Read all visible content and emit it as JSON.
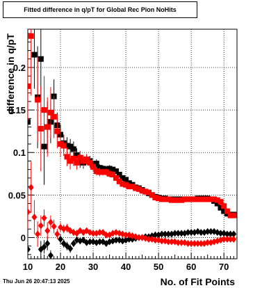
{
  "window": {
    "title": "Fitted difference in q/pT for Global Rec Pion NoHits",
    "timestamp": "Thu Jun 26 20:47:13 2025"
  },
  "chart_data": {
    "type": "scatter",
    "title": "Fitted difference in q/pT for Global Rec Pion NoHits",
    "xlabel": "No. of Fit Points",
    "ylabel": "difference in q/pT",
    "xlim": [
      10,
      74
    ],
    "ylim": [
      -0.025,
      0.245
    ],
    "x_ticks": [
      10,
      20,
      30,
      40,
      50,
      60,
      70
    ],
    "y_ticks": [
      0,
      0.05,
      0.1,
      0.15,
      0.2
    ],
    "y_tick_labels": [
      "0",
      "0.05",
      "0.1",
      "0.15",
      "0.2"
    ],
    "grid": true,
    "colors": {
      "black": "#000000",
      "red": "#ff0000"
    },
    "series": [
      {
        "color": "#000000",
        "marker": "square",
        "x": [
          10,
          11,
          12,
          13,
          14,
          15,
          16,
          17,
          18,
          19,
          20,
          21,
          22,
          23,
          24,
          25,
          26,
          27,
          28,
          29,
          30,
          31,
          32,
          33,
          34,
          35,
          36,
          37,
          38,
          39,
          40,
          41,
          42,
          43,
          44,
          45,
          46,
          47,
          48,
          49,
          50,
          51,
          52,
          53,
          54,
          55,
          56,
          57,
          58,
          59,
          60,
          61,
          62,
          63,
          64,
          65,
          66,
          67,
          68,
          69,
          70,
          71,
          72,
          73
        ],
        "values": [
          0.136,
          null,
          0.215,
          0.165,
          0.21,
          0.107,
          0.13,
          0.136,
          0.166,
          0.132,
          0.121,
          0.111,
          0.108,
          0.107,
          0.104,
          0.097,
          0.089,
          0.088,
          0.092,
          0.09,
          0.085,
          0.087,
          0.082,
          0.081,
          0.08,
          0.081,
          0.08,
          0.078,
          0.074,
          0.07,
          0.068,
          0.064,
          0.062,
          0.059,
          0.058,
          0.056,
          0.054,
          0.052,
          0.05,
          0.048,
          0.047,
          0.046,
          0.046,
          0.045,
          0.045,
          0.045,
          0.045,
          0.045,
          0.045,
          0.045,
          0.045,
          0.045,
          0.046,
          0.046,
          0.046,
          0.046,
          0.045,
          0.043,
          0.04,
          0.035,
          0.031,
          0.028,
          0.027,
          0.027
        ],
        "err": [
          0.02,
          null,
          0.04,
          0.06,
          0.05,
          0.045,
          0.03,
          0.025,
          0.02,
          0.015,
          0.012,
          0.01,
          0.01,
          0.009,
          0.009,
          0.008,
          0.007,
          0.007,
          0.006,
          0.006,
          0.005,
          0.005,
          0.004,
          0.004,
          0.004,
          0.004,
          0.003,
          0.003,
          0.003,
          0.003,
          0.003,
          0.002,
          0.002,
          0.002,
          0.002,
          0.002,
          0.002,
          0.002,
          0.002,
          0.002,
          0.002,
          0.002,
          0.002,
          0.002,
          0.002,
          0.002,
          0.002,
          0.002,
          0.002,
          0.002,
          0.002,
          0.002,
          0.002,
          0.002,
          0.002,
          0.002,
          0.002,
          0.002,
          0.002,
          0.002,
          0.002,
          0.002,
          0.002,
          0.002
        ]
      },
      {
        "color": "#ff0000",
        "marker": "square",
        "x": [
          10,
          11,
          12,
          13,
          14,
          15,
          16,
          17,
          18,
          19,
          20,
          21,
          22,
          23,
          24,
          25,
          26,
          27,
          28,
          29,
          30,
          31,
          32,
          33,
          34,
          35,
          36,
          37,
          38,
          39,
          40,
          41,
          42,
          43,
          44,
          45,
          46,
          47,
          48,
          49,
          50,
          51,
          52,
          53,
          54,
          55,
          56,
          57,
          58,
          59,
          60,
          61,
          62,
          63,
          64,
          65,
          66,
          67,
          68,
          69,
          70,
          71,
          72,
          73
        ],
        "values": [
          0.178,
          0.237,
          null,
          0.162,
          0.128,
          0.15,
          0.13,
          0.147,
          0.142,
          0.125,
          0.11,
          0.108,
          0.095,
          0.09,
          0.093,
          0.088,
          0.094,
          0.09,
          0.092,
          0.088,
          0.083,
          0.078,
          0.077,
          0.077,
          0.077,
          0.075,
          0.074,
          0.07,
          0.066,
          0.063,
          0.062,
          0.06,
          0.06,
          0.058,
          0.057,
          0.055,
          0.054,
          0.053,
          0.05,
          0.047,
          0.046,
          0.045,
          0.045,
          0.045,
          0.044,
          0.044,
          0.044,
          0.044,
          0.045,
          0.045,
          0.045,
          0.045,
          0.045,
          0.045,
          0.045,
          0.045,
          0.045,
          0.045,
          0.044,
          0.042,
          0.037,
          0.031,
          0.026,
          0.026
        ],
        "err": [
          0.04,
          0.07,
          null,
          0.05,
          0.05,
          0.04,
          0.035,
          0.03,
          0.025,
          0.02,
          0.015,
          0.012,
          0.011,
          0.01,
          0.009,
          0.008,
          0.008,
          0.007,
          0.006,
          0.006,
          0.005,
          0.005,
          0.005,
          0.004,
          0.004,
          0.004,
          0.003,
          0.003,
          0.003,
          0.003,
          0.003,
          0.003,
          0.002,
          0.002,
          0.002,
          0.002,
          0.002,
          0.002,
          0.002,
          0.002,
          0.002,
          0.002,
          0.002,
          0.002,
          0.002,
          0.002,
          0.002,
          0.002,
          0.002,
          0.002,
          0.002,
          0.002,
          0.002,
          0.002,
          0.002,
          0.002,
          0.002,
          0.002,
          0.002,
          0.002,
          0.002,
          0.002,
          0.002,
          0.002
        ]
      },
      {
        "color": "#000000",
        "marker": "diamond",
        "x": [
          10,
          11,
          12,
          13,
          14,
          15,
          16,
          17,
          18,
          19,
          20,
          21,
          22,
          23,
          24,
          25,
          26,
          27,
          28,
          29,
          30,
          31,
          32,
          33,
          34,
          35,
          36,
          37,
          38,
          39,
          40,
          41,
          42,
          43,
          44,
          45,
          46,
          47,
          48,
          49,
          50,
          51,
          52,
          53,
          54,
          55,
          56,
          57,
          58,
          59,
          60,
          61,
          62,
          63,
          64,
          65,
          66,
          67,
          68,
          69,
          70,
          71,
          72,
          73
        ],
        "values": [
          -0.014,
          null,
          null,
          null,
          -0.014,
          -0.011,
          -0.007,
          -0.021,
          null,
          null,
          -0.002,
          -0.007,
          -0.01,
          -0.013,
          -0.007,
          -0.003,
          -0.004,
          -0.003,
          -0.006,
          -0.005,
          -0.005,
          -0.006,
          -0.005,
          -0.005,
          -0.007,
          -0.005,
          -0.004,
          -0.003,
          -0.003,
          -0.004,
          -0.003,
          -0.002,
          -0.002,
          -0.001,
          0,
          0,
          0.001,
          0.001,
          0.002,
          0.003,
          0.003,
          0.004,
          0.004,
          0.004,
          0.004,
          0.005,
          0.005,
          0.005,
          0.005,
          0.006,
          0.006,
          0.006,
          0.007,
          0.006,
          0.006,
          0.007,
          0.007,
          0.007,
          0.006,
          0.005,
          0.005,
          0.004,
          0.004,
          0.004
        ],
        "err": [
          0.01,
          null,
          null,
          null,
          0.01,
          0.008,
          0.008,
          0.006,
          null,
          null,
          0.006,
          0.005,
          0.005,
          0.005,
          0.004,
          0.004,
          0.003,
          0.003,
          0.003,
          0.003,
          0.002,
          0.002,
          0.002,
          0.002,
          0.002,
          0.002,
          0.002,
          0.002,
          0.002,
          0.002,
          0.002,
          0.002,
          0.002,
          0.002,
          0.002,
          0.002,
          0.002,
          0.002,
          0.002,
          0.002,
          0.002,
          0.002,
          0.002,
          0.002,
          0.002,
          0.002,
          0.002,
          0.002,
          0.002,
          0.002,
          0.002,
          0.002,
          0.002,
          0.002,
          0.002,
          0.002,
          0.002,
          0.002,
          0.002,
          0.002,
          0.002,
          0.002,
          0.002,
          0.002
        ]
      },
      {
        "color": "#ff0000",
        "marker": "diamond",
        "x": [
          10,
          11,
          12,
          13,
          14,
          15,
          16,
          17,
          18,
          19,
          20,
          21,
          22,
          23,
          24,
          25,
          26,
          27,
          28,
          29,
          30,
          31,
          32,
          33,
          34,
          35,
          36,
          37,
          38,
          39,
          40,
          41,
          42,
          43,
          44,
          45,
          46,
          47,
          48,
          49,
          50,
          51,
          52,
          53,
          54,
          55,
          56,
          57,
          58,
          59,
          60,
          61,
          62,
          63,
          64,
          65,
          66,
          67,
          68,
          69,
          70,
          71,
          72,
          73
        ],
        "values": [
          0.03,
          0.059,
          0.024,
          0.004,
          0.014,
          0.023,
          0.008,
          0.018,
          0.013,
          0.004,
          0.012,
          0.01,
          0.011,
          0.008,
          0.006,
          0.005,
          0.008,
          0.006,
          0.008,
          0.006,
          0.005,
          0.005,
          0.006,
          0.006,
          0.003,
          0.003,
          0.005,
          0.006,
          0.005,
          0.004,
          0.003,
          0.003,
          0.002,
          0.001,
          0,
          0,
          -0.001,
          -0.002,
          -0.002,
          -0.003,
          -0.003,
          -0.004,
          -0.004,
          -0.005,
          -0.005,
          -0.005,
          -0.006,
          -0.006,
          -0.006,
          -0.007,
          -0.007,
          -0.007,
          -0.007,
          -0.007,
          -0.007,
          -0.006,
          -0.006,
          -0.005,
          -0.004,
          -0.003,
          -0.002,
          -0.002,
          -0.002,
          -0.002
        ],
        "err": [
          0.02,
          0.03,
          0.02,
          0.015,
          0.012,
          0.01,
          0.01,
          0.008,
          0.008,
          0.006,
          0.006,
          0.005,
          0.005,
          0.004,
          0.004,
          0.004,
          0.003,
          0.003,
          0.003,
          0.003,
          0.003,
          0.002,
          0.002,
          0.002,
          0.002,
          0.002,
          0.002,
          0.002,
          0.002,
          0.002,
          0.002,
          0.002,
          0.002,
          0.002,
          0.002,
          0.002,
          0.002,
          0.002,
          0.002,
          0.002,
          0.002,
          0.002,
          0.002,
          0.002,
          0.002,
          0.002,
          0.002,
          0.002,
          0.002,
          0.002,
          0.002,
          0.002,
          0.002,
          0.002,
          0.002,
          0.002,
          0.002,
          0.002,
          0.002,
          0.002,
          0.002,
          0.002,
          0.002,
          0.002
        ]
      }
    ]
  }
}
